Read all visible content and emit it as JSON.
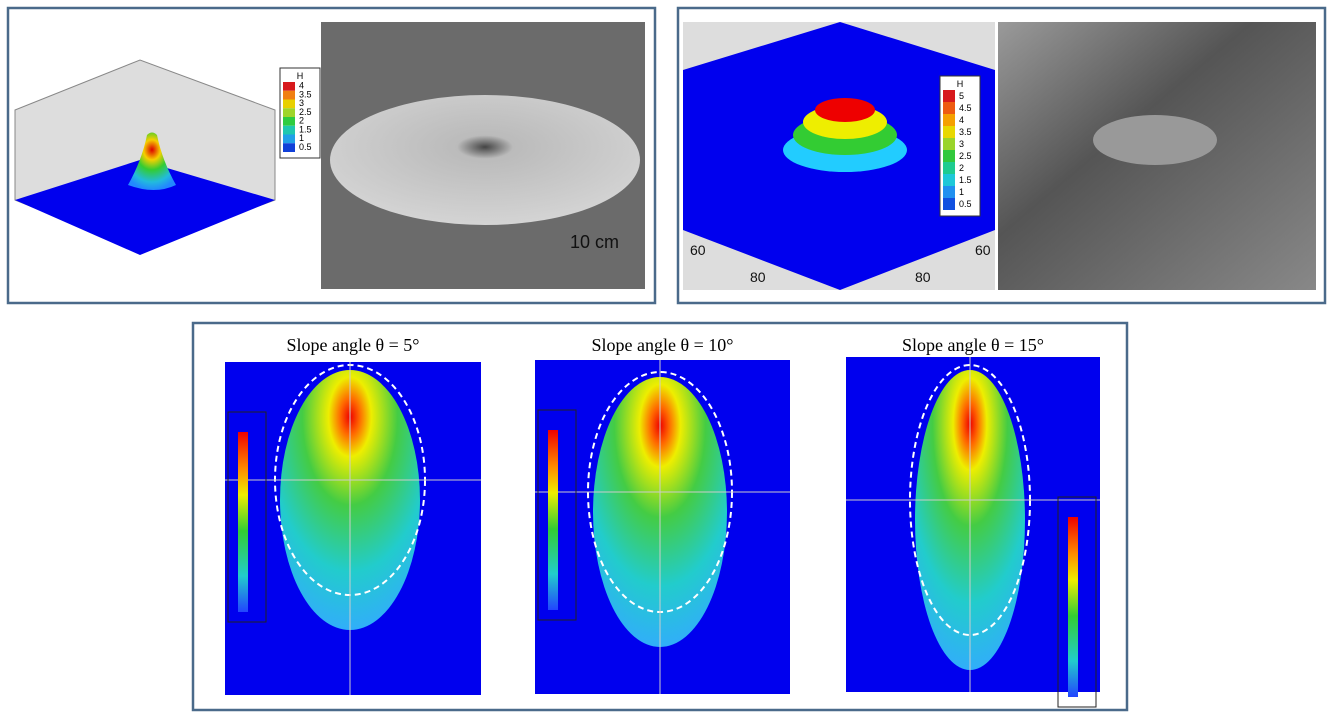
{
  "top_left": {
    "legend_title": "H",
    "legend_labels": [
      "4",
      "3.5",
      "3",
      "2.5",
      "2",
      "1.5",
      "1",
      "0.5"
    ],
    "legend_colors": [
      "#d7191c",
      "#f07f12",
      "#e8d000",
      "#9fd52a",
      "#2ecc40",
      "#1ec8b0",
      "#20a0e8",
      "#1040d8"
    ],
    "scale_label": "10 cm"
  },
  "top_right": {
    "legend_title": "H",
    "legend_labels": [
      "5",
      "4.5",
      "4",
      "3.5",
      "3",
      "2.5",
      "2",
      "1.5",
      "1",
      "0.5"
    ],
    "legend_colors": [
      "#d7191c",
      "#ee5a10",
      "#f5a000",
      "#e8d800",
      "#9ad42a",
      "#32c83c",
      "#1ecc90",
      "#1ec8d8",
      "#2090f0",
      "#1050e0"
    ],
    "axis_labels": [
      "60",
      "80",
      "60",
      "80"
    ]
  },
  "bottom": {
    "panels": [
      {
        "title": "Slope angle θ = 5°"
      },
      {
        "title": "Slope angle θ = 10°"
      },
      {
        "title": "Slope angle θ = 15°"
      }
    ]
  }
}
